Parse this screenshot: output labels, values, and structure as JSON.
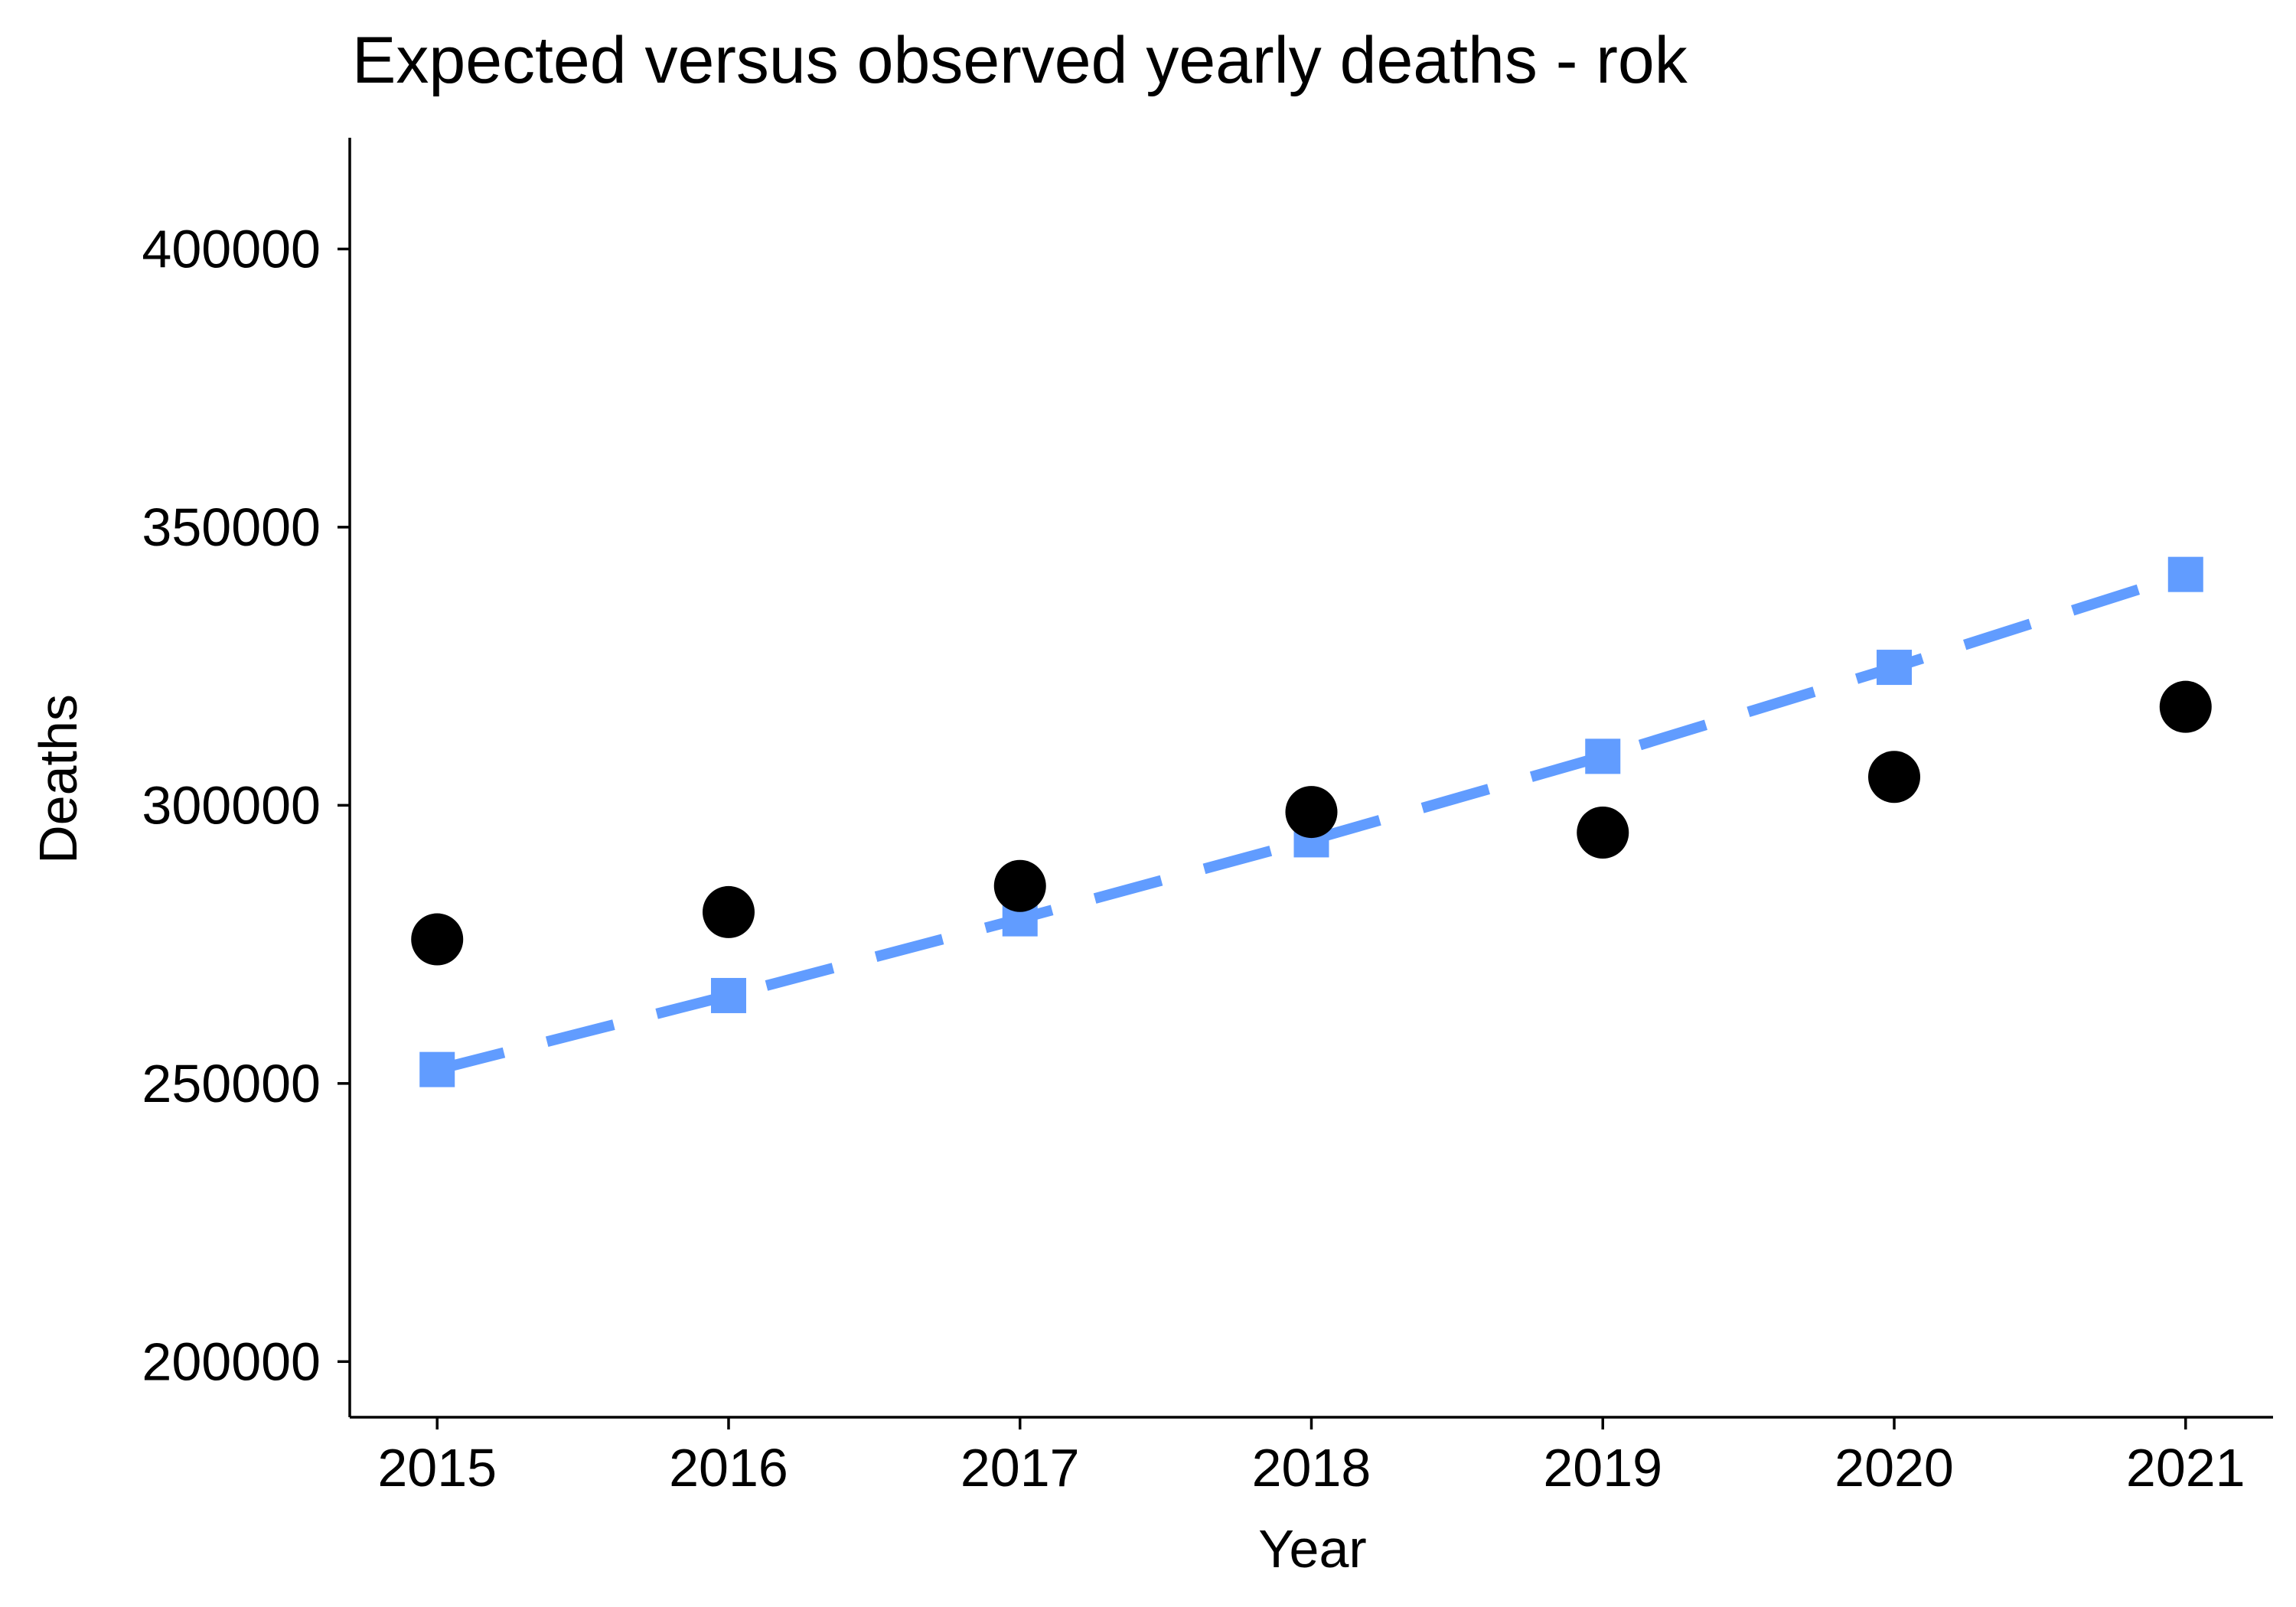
{
  "chart_data": {
    "type": "scatter",
    "title": "Expected versus observed yearly deaths - rok",
    "xlabel": "Year",
    "ylabel": "Deaths",
    "x": [
      2015,
      2016,
      2017,
      2018,
      2019,
      2020,
      2021
    ],
    "x_ticks": [
      "2015",
      "2016",
      "2017",
      "2018",
      "2019",
      "2020",
      "2021"
    ],
    "y_ticks": [
      "200000",
      "250000",
      "300000",
      "350000",
      "400000"
    ],
    "ylim": [
      190000,
      420000
    ],
    "xlim": [
      2014.7,
      2021.3
    ],
    "grid": false,
    "legend": "none",
    "series": [
      {
        "role": "observed",
        "mark": "circle",
        "color": "#000000",
        "values": [
          275900,
          280800,
          285500,
          298800,
          295100,
          305100,
          317700
        ]
      },
      {
        "role": "expected",
        "mark": "square",
        "line": "dashed",
        "color": "#619CFF",
        "values": [
          252500,
          265800,
          279600,
          293800,
          308800,
          324800,
          341500
        ]
      }
    ]
  }
}
